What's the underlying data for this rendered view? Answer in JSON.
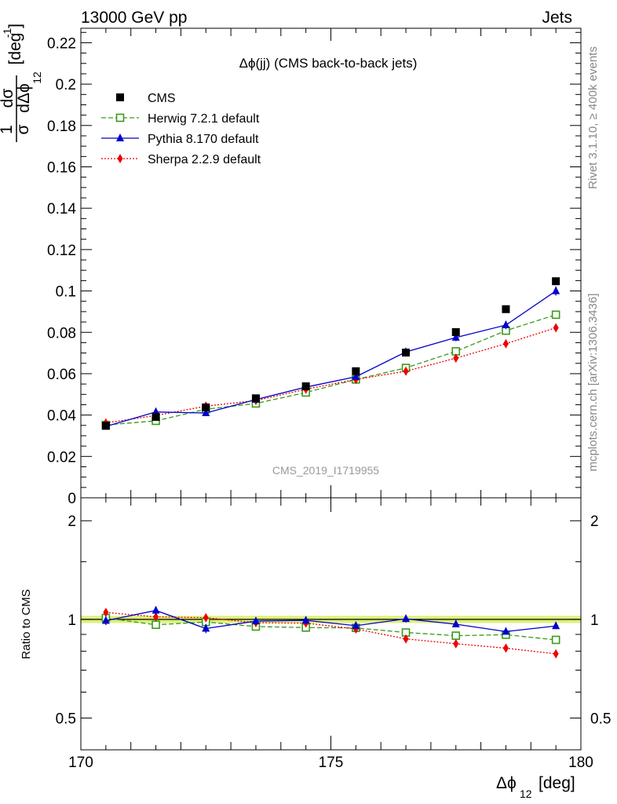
{
  "header": {
    "left": "13000 GeV pp",
    "right": "Jets"
  },
  "side_labels": {
    "rivet": "Rivet 3.1.10, ≥ 400k events",
    "mcplots": "mcplots.cern.ch [arXiv:1306.3436]"
  },
  "chart_data": [
    {
      "panel": "main",
      "type": "scatter",
      "title": "Δϕ(jj) (CMS back-to-back jets)",
      "watermark": "CMS_2019_I1719955",
      "ylabel_parts": {
        "one": "1",
        "dsigma": "dσ",
        "sigma": "σ",
        "dphi": "dΔϕ",
        "sub": "12",
        "unit": "[deg",
        "exp": "-1",
        "close": "]"
      },
      "xlabel_parts": {
        "main": "Δϕ",
        "sub": "12",
        "unit": "[deg]"
      },
      "xlim": [
        170,
        180
      ],
      "ylim": [
        0,
        0.227
      ],
      "x_ticks": [
        170,
        175,
        180
      ],
      "x_tick_labels": [
        "170",
        "175",
        "180"
      ],
      "y_ticks": [
        0,
        0.02,
        0.04,
        0.06,
        0.08,
        0.1,
        0.12,
        0.14,
        0.16,
        0.18,
        0.2,
        0.22
      ],
      "y_tick_labels": [
        "0",
        "0.02",
        "0.04",
        "0.06",
        "0.08",
        "0.1",
        "0.12",
        "0.14",
        "0.16",
        "0.18",
        "0.2",
        "0.22"
      ],
      "x": [
        170.5,
        171.5,
        172.5,
        173.5,
        174.5,
        175.5,
        176.5,
        177.5,
        178.5,
        179.5
      ],
      "legend_position": "top-left",
      "series": [
        {
          "name": "CMS",
          "color": "#000000",
          "marker": "square",
          "line": "none",
          "values": [
            0.0348,
            0.0391,
            0.0437,
            0.0481,
            0.0539,
            0.0612,
            0.0702,
            0.0801,
            0.0912,
            0.1047
          ]
        },
        {
          "name": "Herwig 7.2.1 default",
          "color": "#3a9a1a",
          "marker": "open-square",
          "line": "dashed",
          "values": [
            0.0352,
            0.0372,
            0.0428,
            0.0456,
            0.0509,
            0.0572,
            0.0628,
            0.0708,
            0.0808,
            0.0885
          ]
        },
        {
          "name": "Pythia 8.170 default",
          "color": "#0000cc",
          "marker": "triangle",
          "line": "solid",
          "values": [
            0.0345,
            0.0415,
            0.041,
            0.0475,
            0.0535,
            0.0585,
            0.0705,
            0.0775,
            0.0835,
            0.1
          ],
          "errors": [
            0.001,
            0.0012,
            0.001,
            0.0012,
            0.0012,
            0.0012,
            0.0018,
            0.0018,
            0.002,
            0.0022
          ]
        },
        {
          "name": "Sherpa 2.2.9 default",
          "color": "#ee0000",
          "marker": "diamond",
          "line": "dotted",
          "values": [
            0.0362,
            0.0398,
            0.0443,
            0.047,
            0.0525,
            0.0572,
            0.0612,
            0.0675,
            0.0745,
            0.0822
          ]
        }
      ]
    },
    {
      "panel": "ratio",
      "type": "line",
      "ylabel": "Ratio to CMS",
      "xlim": [
        170,
        180
      ],
      "ylim": [
        0.4,
        2.35
      ],
      "log_y": true,
      "y_ticks": [
        0.5,
        1,
        2
      ],
      "y_tick_labels": [
        "0.5",
        "1",
        "2"
      ],
      "band": [
        0.975,
        1.025
      ],
      "band_color": "#ddf07a",
      "x": [
        170.5,
        171.5,
        172.5,
        173.5,
        174.5,
        175.5,
        176.5,
        177.5,
        178.5,
        179.5
      ],
      "series": [
        {
          "name": "Herwig 7.2.1 default",
          "color": "#3a9a1a",
          "marker": "open-square",
          "line": "dashed",
          "values": [
            1.01,
            0.963,
            0.982,
            0.951,
            0.944,
            0.942,
            0.912,
            0.892,
            0.898,
            0.866
          ]
        },
        {
          "name": "Pythia 8.170 default",
          "color": "#0000cc",
          "marker": "triangle",
          "line": "solid",
          "values": [
            0.991,
            1.065,
            0.938,
            0.988,
            0.993,
            0.957,
            1.004,
            0.967,
            0.918,
            0.955
          ],
          "errors": [
            0.03,
            0.03,
            0.03,
            0.025,
            0.025,
            0.025,
            0.025,
            0.02,
            0.02,
            0.02
          ]
        },
        {
          "name": "Sherpa 2.2.9 default",
          "color": "#ee0000",
          "marker": "diamond",
          "line": "dotted",
          "values": [
            1.05,
            1.018,
            1.012,
            0.977,
            0.974,
            0.935,
            0.872,
            0.843,
            0.817,
            0.785
          ]
        }
      ]
    }
  ]
}
